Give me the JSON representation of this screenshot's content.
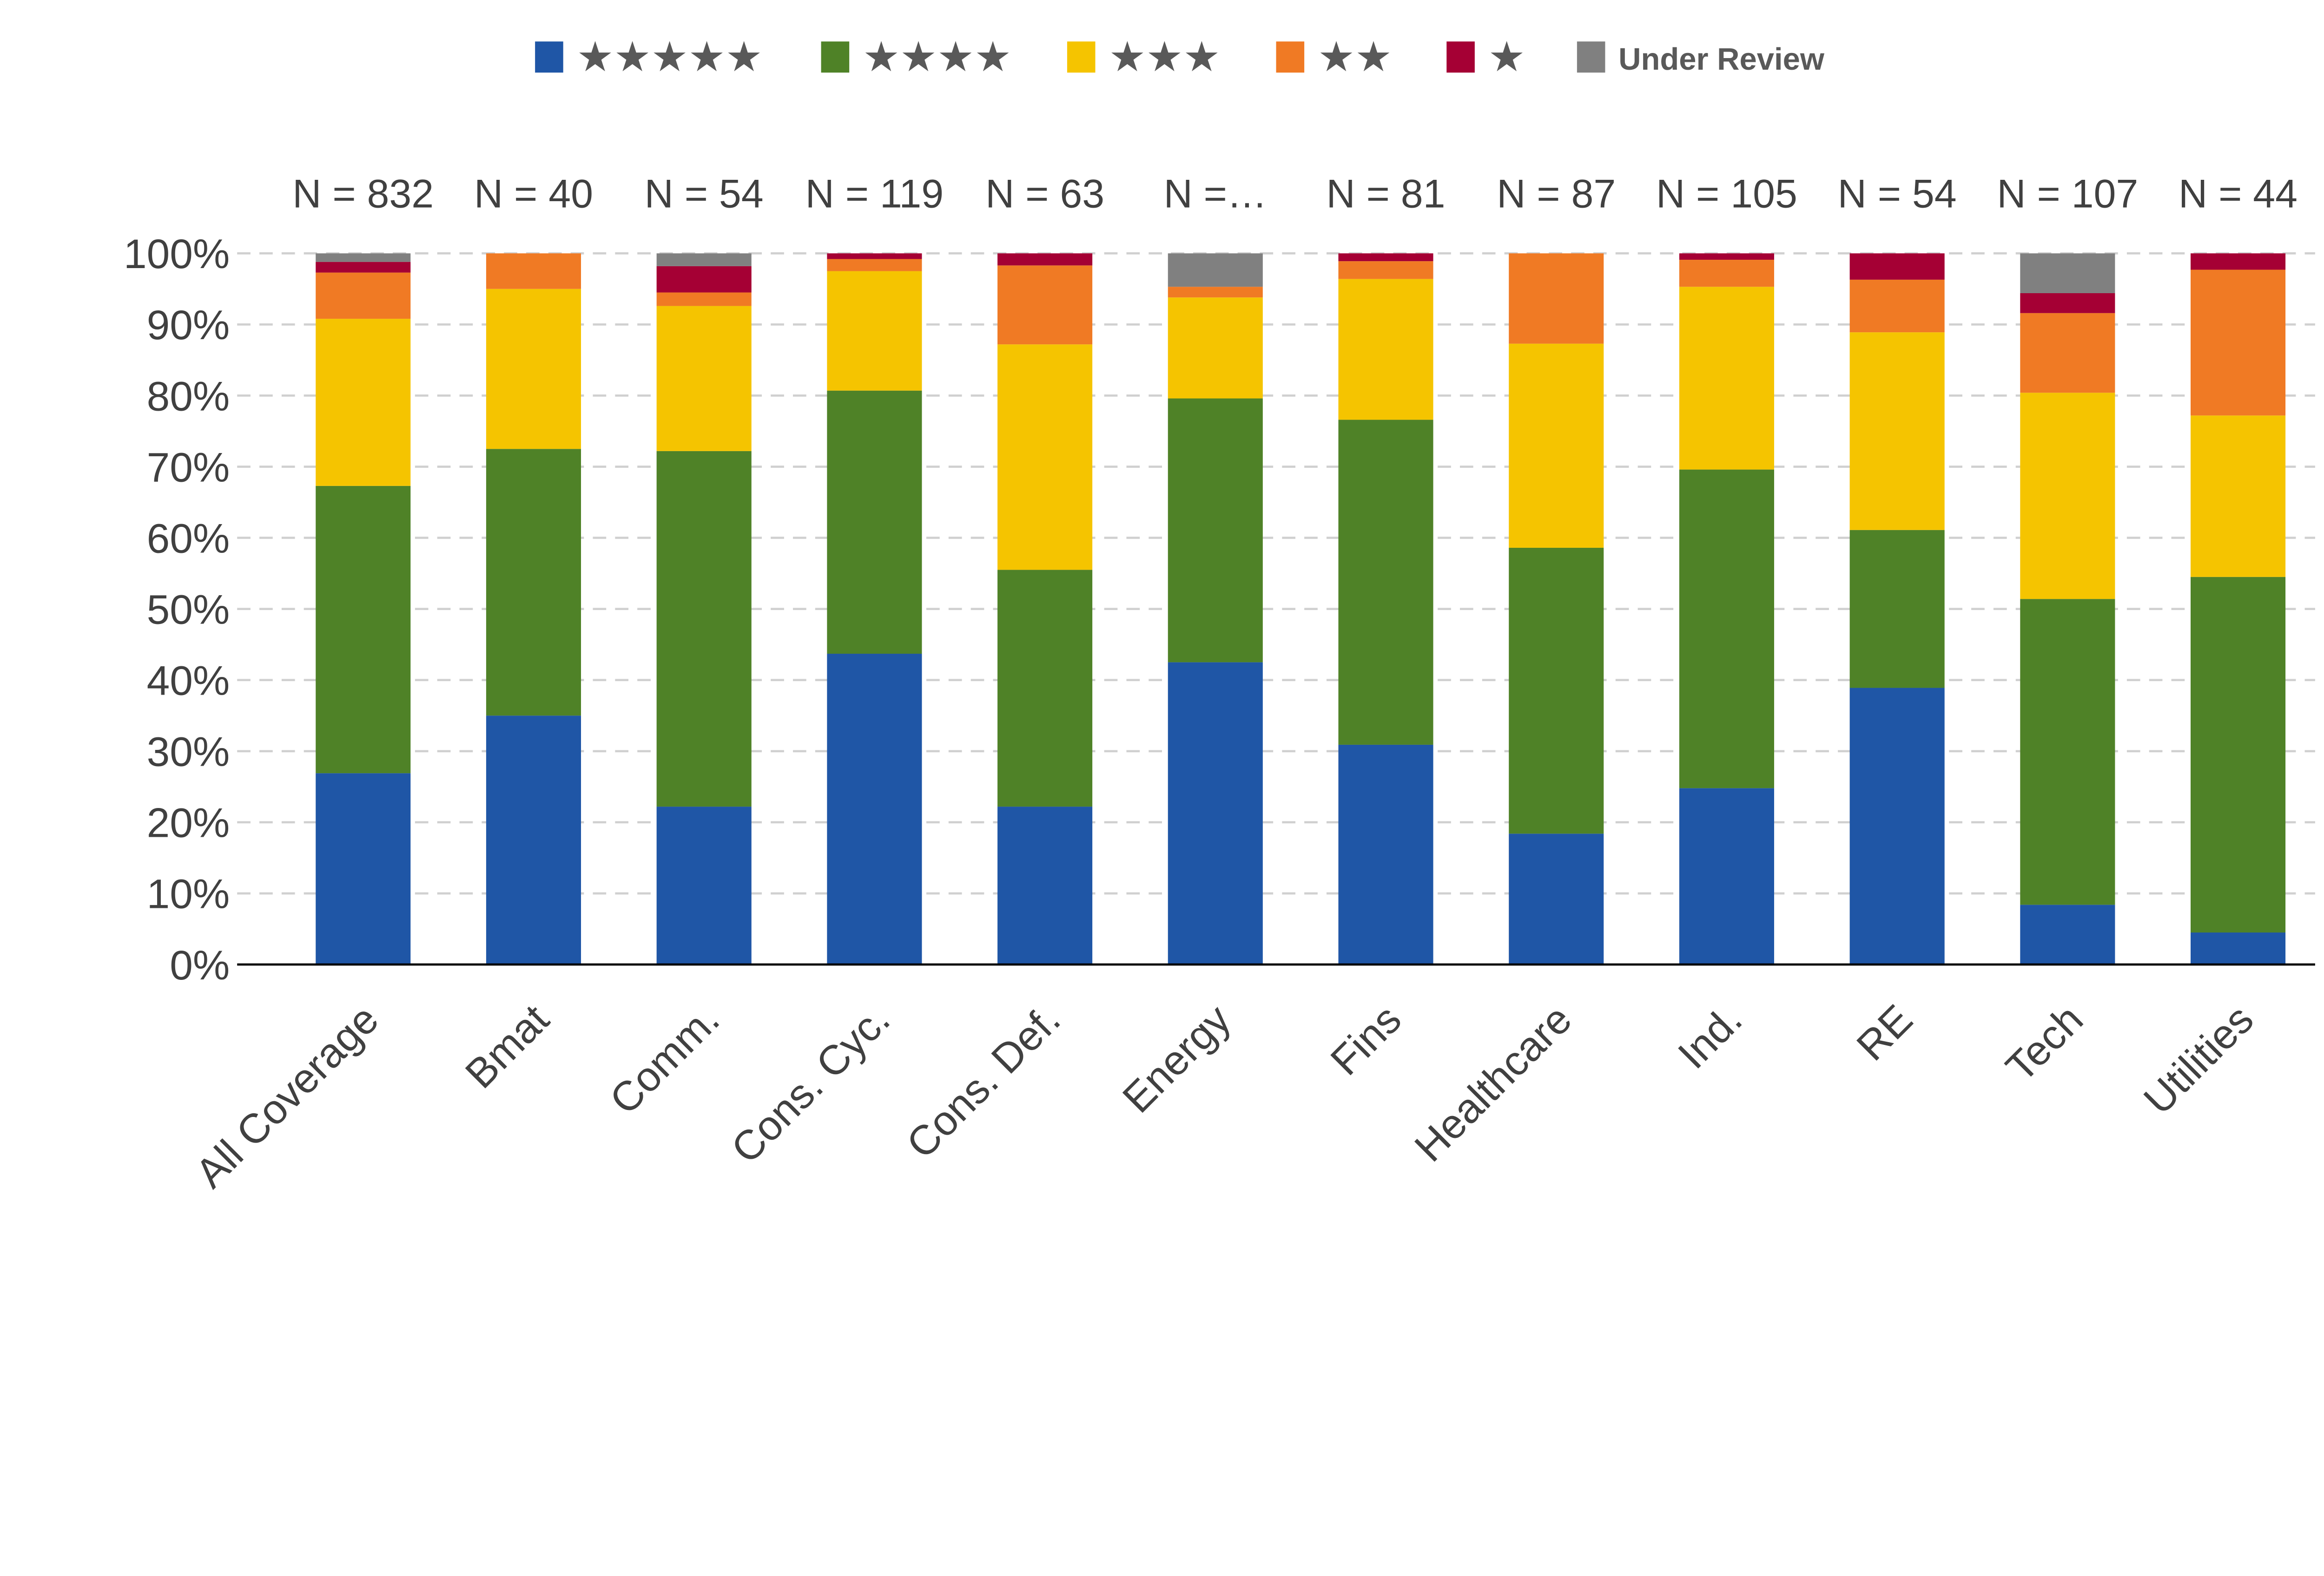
{
  "chart_data": {
    "type": "bar",
    "stacked": true,
    "percent": true,
    "title": "",
    "xlabel": "",
    "ylabel": "",
    "ylim": [
      0,
      100
    ],
    "yticks": [
      "0%",
      "10%",
      "20%",
      "30%",
      "40%",
      "50%",
      "60%",
      "70%",
      "80%",
      "90%",
      "100%"
    ],
    "grid": true,
    "legend_position": "top",
    "categories": [
      "All Coverage",
      "Bmat",
      "Comm.",
      "Cons. Cyc.",
      "Cons. Def.",
      "Energy",
      "Fins",
      "Healthcare",
      "Ind.",
      "RE",
      "Tech",
      "Utilities"
    ],
    "n_labels": [
      "N = 832",
      "N = 40",
      "N = 54",
      "N = 119",
      "N = 63",
      "N =…",
      "N = 81",
      "N = 87",
      "N = 105",
      "N = 54",
      "N = 107",
      "N = 44"
    ],
    "series": [
      {
        "name": "★★★★★",
        "color": "#1f56a6",
        "values": [
          26.9,
          35.0,
          22.2,
          43.7,
          22.2,
          42.5,
          30.9,
          18.4,
          24.8,
          38.9,
          8.4,
          4.5
        ]
      },
      {
        "name": "★★★★",
        "color": "#4f8227",
        "values": [
          40.4,
          37.5,
          50.0,
          37.0,
          33.3,
          37.1,
          45.7,
          40.2,
          44.8,
          22.2,
          43.0,
          50.0
        ]
      },
      {
        "name": "★★★",
        "color": "#f5c400",
        "values": [
          23.5,
          22.5,
          20.4,
          16.8,
          31.7,
          14.2,
          19.8,
          28.7,
          25.7,
          27.8,
          29.0,
          22.7
        ]
      },
      {
        "name": "★★",
        "color": "#f07a24",
        "values": [
          6.5,
          5.0,
          1.9,
          1.7,
          11.1,
          1.5,
          2.5,
          12.7,
          3.8,
          7.4,
          11.2,
          20.5
        ]
      },
      {
        "name": "★",
        "color": "#a50034",
        "values": [
          1.5,
          0,
          3.7,
          0.8,
          1.7,
          0,
          1.1,
          0,
          0.9,
          3.7,
          2.8,
          2.3
        ]
      },
      {
        "name": "Under Review",
        "color": "#808080",
        "values": [
          1.2,
          0,
          1.8,
          0,
          0,
          4.7,
          0,
          0,
          0,
          0,
          5.6,
          0
        ]
      }
    ]
  }
}
